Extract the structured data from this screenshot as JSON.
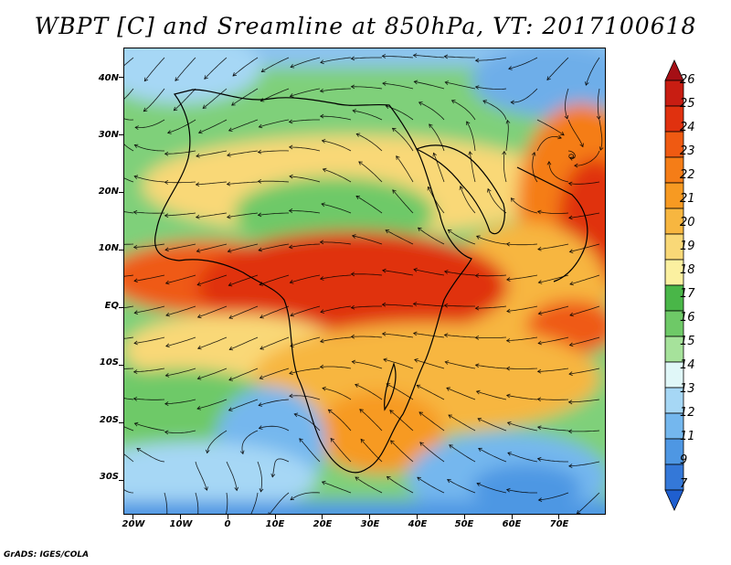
{
  "title": "WBPT [C] and Sreamline at 850hPa, VT: 2017100618",
  "credit": "GrADS: IGES/COLA",
  "lat_labels": [
    "40N",
    "30N",
    "20N",
    "10N",
    "EQ",
    "10S",
    "20S",
    "30S"
  ],
  "lat_values": [
    40,
    30,
    20,
    10,
    0,
    -10,
    -20,
    -30
  ],
  "lon_labels": [
    "20W",
    "10W",
    "0",
    "10E",
    "20E",
    "30E",
    "40E",
    "50E",
    "60E",
    "70E"
  ],
  "lon_values": [
    -20,
    -10,
    0,
    10,
    20,
    30,
    40,
    50,
    60,
    70
  ],
  "extent": {
    "lon": [
      -22,
      80
    ],
    "lat": [
      -36,
      45
    ]
  },
  "colorbar": {
    "labels": [
      "26",
      "25",
      "24",
      "23",
      "22",
      "21",
      "20",
      "19",
      "18",
      "17",
      "16",
      "15",
      "14",
      "13",
      "12",
      "11",
      "9",
      "7"
    ],
    "colors": [
      "#a50f15",
      "#c81d12",
      "#e0310f",
      "#ef5a12",
      "#f57d17",
      "#f79a22",
      "#f7b640",
      "#f9d877",
      "#fbf0a0",
      "#49b648",
      "#6ec967",
      "#a6e29b",
      "#e0f7f8",
      "#a6d7f5",
      "#74b7ee",
      "#4e97e3",
      "#3478d8",
      "#1f5fd0"
    ]
  }
}
